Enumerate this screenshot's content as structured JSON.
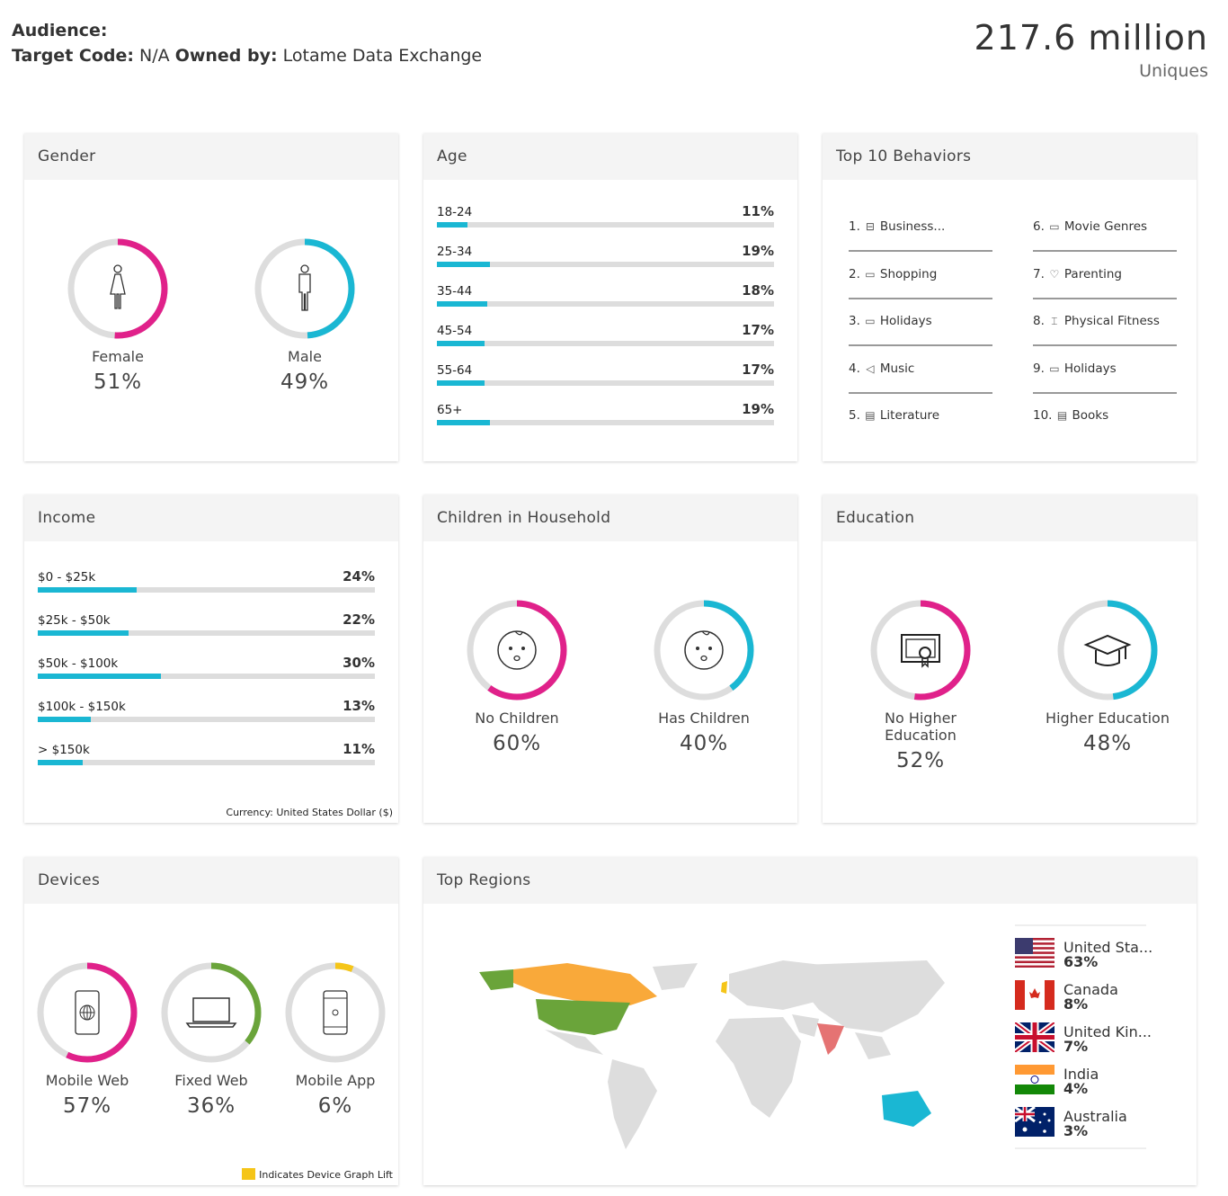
{
  "header": {
    "audience_label": "Audience:",
    "target_code_label": "Target Code:",
    "target_code": "N/A",
    "owned_by_label": "Owned by:",
    "owned_by": "Lotame Data Exchange",
    "uniques_value": "217.6 million",
    "uniques_label": "Uniques"
  },
  "colors": {
    "pink": "#e0218a",
    "cyan": "#1ab7d3",
    "green": "#6aa43a",
    "yellow": "#f5c518",
    "track": "#dddddd"
  },
  "gender": {
    "title": "Gender",
    "items": [
      {
        "label": "Female",
        "pct": "51%",
        "value": 51,
        "color": "#e0218a",
        "icon": "female-icon"
      },
      {
        "label": "Male",
        "pct": "49%",
        "value": 49,
        "color": "#1ab7d3",
        "icon": "male-icon"
      }
    ]
  },
  "age": {
    "title": "Age",
    "items": [
      {
        "label": "18-24",
        "pct": "11%",
        "value": 11
      },
      {
        "label": "25-34",
        "pct": "19%",
        "value": 19
      },
      {
        "label": "35-44",
        "pct": "18%",
        "value": 18
      },
      {
        "label": "45-54",
        "pct": "17%",
        "value": 17
      },
      {
        "label": "55-64",
        "pct": "17%",
        "value": 17
      },
      {
        "label": "65+",
        "pct": "19%",
        "value": 19
      }
    ]
  },
  "behaviors": {
    "title": "Top 10 Behaviors",
    "items": [
      {
        "n": "1.",
        "label": "Business...",
        "icon": "briefcase-icon"
      },
      {
        "n": "2.",
        "label": "Shopping",
        "icon": "calendar-icon"
      },
      {
        "n": "3.",
        "label": "Holidays",
        "icon": "calendar-icon"
      },
      {
        "n": "4.",
        "label": "Music",
        "icon": "speaker-icon"
      },
      {
        "n": "5.",
        "label": "Literature",
        "icon": "book-icon"
      },
      {
        "n": "6.",
        "label": "Movie Genres",
        "icon": "ticket-icon"
      },
      {
        "n": "7.",
        "label": "Parenting",
        "icon": "hearts-icon"
      },
      {
        "n": "8.",
        "label": "Physical Fitness",
        "icon": "dumbbell-icon"
      },
      {
        "n": "9.",
        "label": "Holidays",
        "icon": "calendar-icon"
      },
      {
        "n": "10.",
        "label": "Books",
        "icon": "book-icon"
      }
    ]
  },
  "income": {
    "title": "Income",
    "note": "Currency: United States Dollar ($)",
    "items": [
      {
        "label": "$0 - $25k",
        "pct": "24%",
        "value": 24
      },
      {
        "label": "$25k - $50k",
        "pct": "22%",
        "value": 22
      },
      {
        "label": "$50k - $100k",
        "pct": "30%",
        "value": 30
      },
      {
        "label": "$100k - $150k",
        "pct": "13%",
        "value": 13
      },
      {
        "label": "> $150k",
        "pct": "11%",
        "value": 11
      }
    ]
  },
  "children": {
    "title": "Children in Household",
    "items": [
      {
        "label": "No Children",
        "pct": "60%",
        "value": 60,
        "color": "#e0218a",
        "icon": "baby-face-icon"
      },
      {
        "label": "Has Children",
        "pct": "40%",
        "value": 40,
        "color": "#1ab7d3",
        "icon": "baby-face-icon"
      }
    ]
  },
  "education": {
    "title": "Education",
    "items": [
      {
        "label": "No Higher Education",
        "pct": "52%",
        "value": 52,
        "color": "#e0218a",
        "icon": "certificate-icon"
      },
      {
        "label": "Higher Education",
        "pct": "48%",
        "value": 48,
        "color": "#1ab7d3",
        "icon": "graduation-cap-icon"
      }
    ]
  },
  "devices": {
    "title": "Devices",
    "note": "Indicates Device Graph Lift",
    "items": [
      {
        "label": "Mobile Web",
        "pct": "57%",
        "value": 57,
        "color": "#e0218a",
        "icon": "mobile-web-icon"
      },
      {
        "label": "Fixed Web",
        "pct": "36%",
        "value": 36,
        "color": "#6aa43a",
        "icon": "laptop-icon"
      },
      {
        "label": "Mobile App",
        "pct": "6%",
        "value": 6,
        "color": "#f5c518",
        "icon": "mobile-app-icon"
      }
    ]
  },
  "regions": {
    "title": "Top Regions",
    "items": [
      {
        "label": "United Sta...",
        "pct": "63%",
        "color": "#6aa43a"
      },
      {
        "label": "Canada",
        "pct": "8%",
        "color": "#f9a93a"
      },
      {
        "label": "United Kin...",
        "pct": "7%",
        "color": "#f5c518"
      },
      {
        "label": "India",
        "pct": "4%",
        "color": "#e57373"
      },
      {
        "label": "Australia",
        "pct": "3%",
        "color": "#1ab7d3"
      }
    ]
  }
}
